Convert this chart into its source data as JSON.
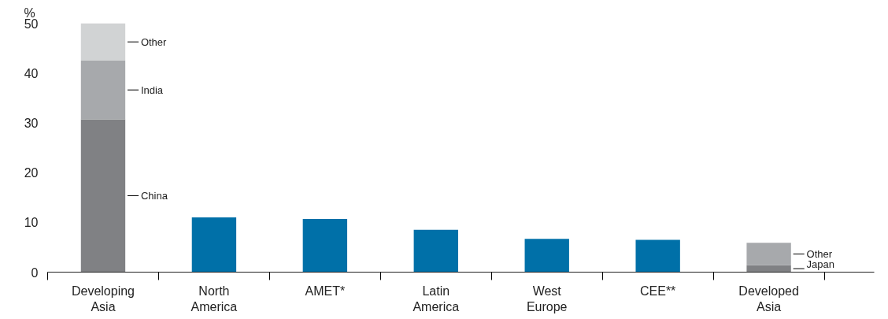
{
  "chart_data": {
    "type": "bar",
    "stacked": true,
    "ylabel": "%",
    "categories": [
      "Developing Asia",
      "North America",
      "AMET*",
      "Latin America",
      "West Europe",
      "CEE**",
      "Developed Asia"
    ],
    "series": [
      {
        "colors": [
          "#808184",
          "#0070a8",
          "#0070a8",
          "#0070a8",
          "#0070a8",
          "#0070a8",
          "#808184"
        ],
        "values": [
          30.7,
          11.0,
          10.7,
          8.5,
          6.7,
          6.5,
          1.4
        ]
      },
      {
        "color": "#a7a9ac",
        "values": [
          11.8,
          null,
          null,
          null,
          null,
          null,
          4.5
        ]
      },
      {
        "color": "#d1d3d4",
        "values": [
          7.5,
          null,
          null,
          null,
          null,
          null,
          null
        ]
      }
    ],
    "ylim": [
      0,
      50
    ],
    "yticks": [
      0,
      10,
      20,
      30,
      40,
      50
    ],
    "grid": false,
    "annotations": [
      "Other",
      "India",
      "China",
      "Other",
      "Japan"
    ]
  }
}
